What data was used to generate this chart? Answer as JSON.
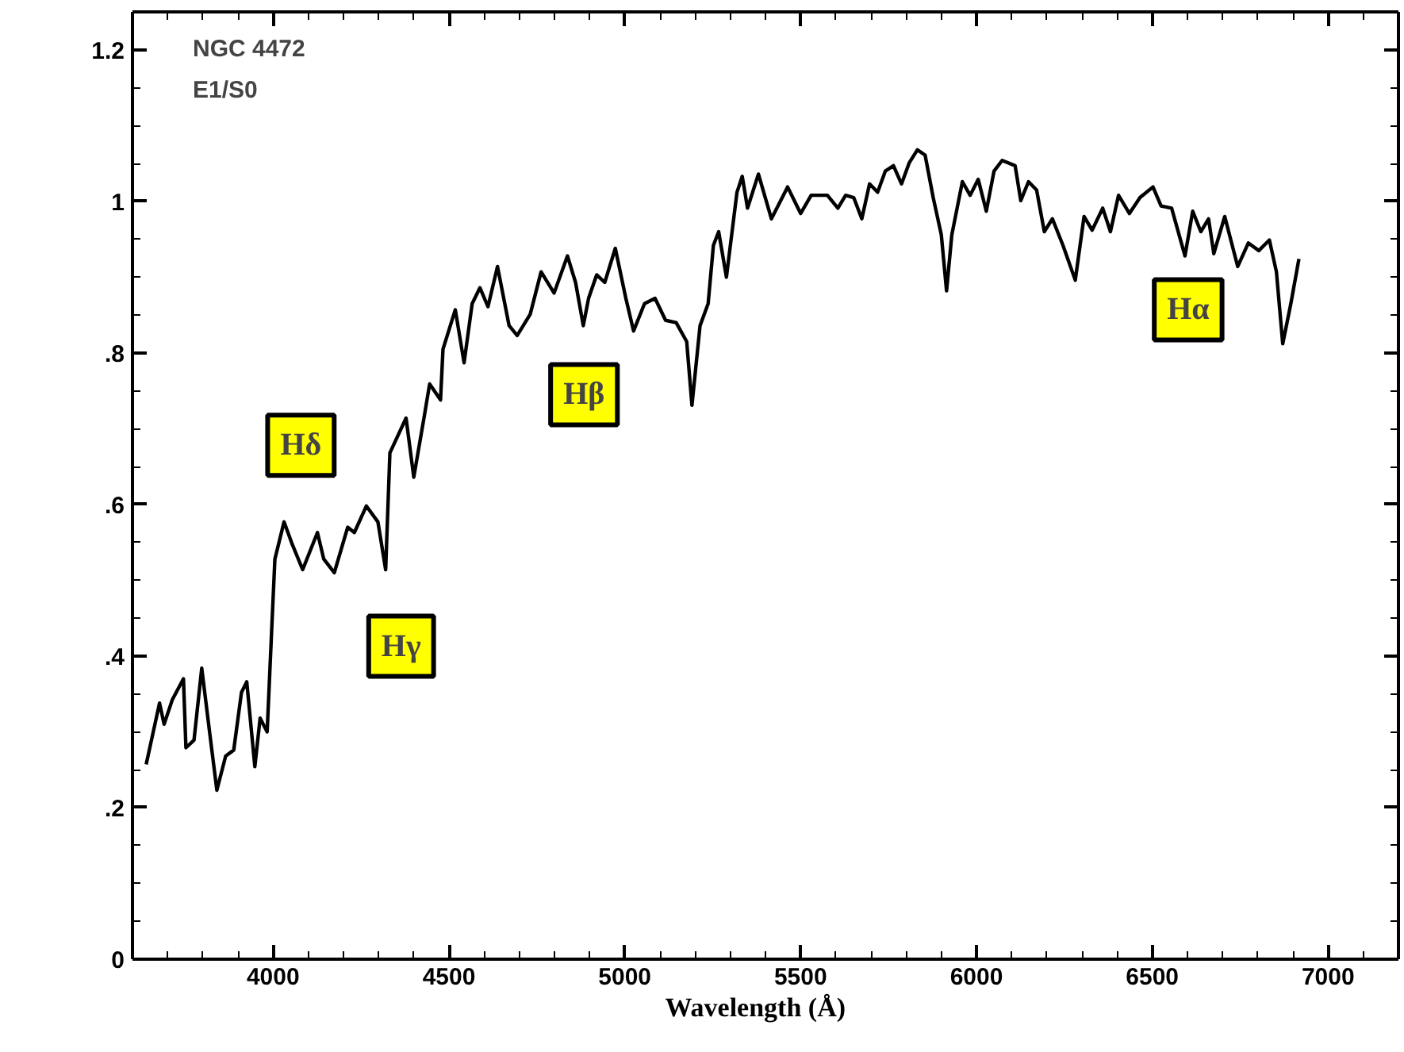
{
  "chart_data": {
    "type": "line",
    "title": "NGC 4472",
    "subtitle": "E1/S0",
    "xlabel": "Wavelength    (Å)",
    "x": [
      3639,
      3677,
      3690,
      3713,
      3745,
      3752,
      3775,
      3797,
      3820,
      3840,
      3865,
      3888,
      3910,
      3925,
      3948,
      3963,
      3983,
      3996,
      4005,
      4031,
      4053,
      4084,
      4126,
      4144,
      4174,
      4212,
      4231,
      4265,
      4298,
      4320,
      4332,
      4378,
      4400,
      4430,
      4445,
      4476,
      4483,
      4518,
      4543,
      4566,
      4588,
      4611,
      4638,
      4671,
      4694,
      4731,
      4762,
      4799,
      4837,
      4860,
      4882,
      4897,
      4920,
      4943,
      4973,
      5003,
      5025,
      5056,
      5086,
      5116,
      5146,
      5176,
      5191,
      5214,
      5237,
      5252,
      5267,
      5289,
      5304,
      5319,
      5334,
      5349,
      5380,
      5395,
      5417,
      5463,
      5500,
      5530,
      5576,
      5606,
      5628,
      5651,
      5674,
      5696,
      5719,
      5741,
      5764,
      5787,
      5809,
      5832,
      5854,
      5877,
      5900,
      5915,
      5930,
      5945,
      5960,
      5982,
      6005,
      6028,
      6050,
      6073,
      6110,
      6126,
      6148,
      6171,
      6193,
      6216,
      6246,
      6281,
      6306,
      6329,
      6359,
      6381,
      6404,
      6435,
      6465,
      6502,
      6525,
      6555,
      6593,
      6615,
      6638,
      6660,
      6675,
      6706,
      6743,
      6773,
      6803,
      6833,
      6853,
      6871,
      6894,
      6917
    ],
    "series": [
      {
        "color": "#000000",
        "values": [
          0.257,
          0.338,
          0.31,
          0.342,
          0.37,
          0.279,
          0.289,
          0.384,
          0.297,
          0.223,
          0.268,
          0.276,
          0.352,
          0.366,
          0.254,
          0.318,
          0.3,
          0.436,
          0.528,
          0.577,
          0.549,
          0.514,
          0.563,
          0.528,
          0.51,
          0.57,
          0.563,
          0.598,
          0.577,
          0.514,
          0.668,
          0.714,
          0.636,
          0.717,
          0.759,
          0.738,
          0.805,
          0.857,
          0.787,
          0.865,
          0.886,
          0.861,
          0.914,
          0.836,
          0.823,
          0.851,
          0.907,
          0.879,
          0.928,
          0.893,
          0.836,
          0.872,
          0.903,
          0.893,
          0.938,
          0.872,
          0.829,
          0.865,
          0.872,
          0.843,
          0.84,
          0.815,
          0.731,
          0.836,
          0.865,
          0.942,
          0.96,
          0.9,
          0.956,
          1.012,
          1.033,
          0.991,
          1.036,
          1.012,
          0.977,
          1.019,
          0.984,
          1.008,
          1.008,
          0.991,
          1.008,
          1.005,
          0.977,
          1.023,
          1.012,
          1.04,
          1.047,
          1.023,
          1.051,
          1.068,
          1.061,
          1.005,
          0.956,
          0.882,
          0.956,
          0.991,
          1.026,
          1.008,
          1.029,
          0.987,
          1.04,
          1.054,
          1.047,
          1.001,
          1.026,
          1.015,
          0.96,
          0.977,
          0.942,
          0.896,
          0.98,
          0.962,
          0.991,
          0.96,
          1.008,
          0.984,
          1.005,
          1.019,
          0.994,
          0.991,
          0.928,
          0.987,
          0.96,
          0.977,
          0.931,
          0.98,
          0.914,
          0.945,
          0.935,
          0.949,
          0.907,
          0.812,
          0.865,
          0.924
        ]
      }
    ],
    "xlim": [
      3600,
      7200
    ],
    "xticks": [
      4000,
      4500,
      5000,
      5500,
      6000,
      6500,
      7000
    ],
    "ylim": [
      0,
      1.25
    ],
    "yticks": [
      {
        "value": 0,
        "label": "0"
      },
      {
        "value": 0.2,
        "label": ".2"
      },
      {
        "value": 0.4,
        "label": ".4"
      },
      {
        "value": 0.6,
        "label": ".6"
      },
      {
        "value": 0.8,
        "label": ".8"
      },
      {
        "value": 1,
        "label": "1"
      },
      {
        "value": 1.2,
        "label": "1.2"
      }
    ],
    "annotations": [
      {
        "text": "Hδ",
        "x": 4079,
        "y": 0.678
      },
      {
        "text": "Hγ",
        "x": 4364,
        "y": 0.413
      },
      {
        "text": "Hβ",
        "x": 4884,
        "y": 0.745
      },
      {
        "text": "Hα",
        "x": 6602,
        "y": 0.857
      }
    ],
    "grid": false,
    "marker": "none",
    "line_style": "solid"
  }
}
